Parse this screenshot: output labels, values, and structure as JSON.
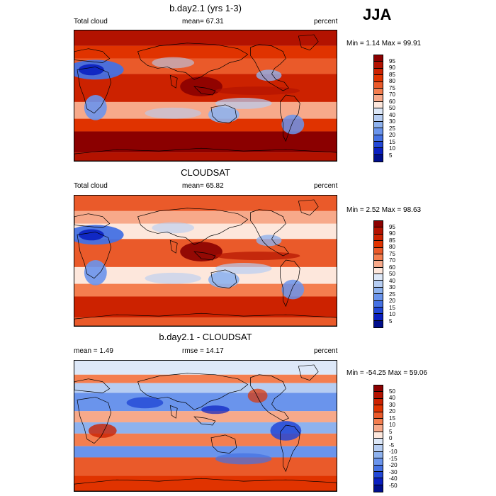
{
  "season_label": "JJA",
  "panels": [
    {
      "title": "b.day2.1 (yrs 1-3)",
      "left_label": "Total cloud",
      "center_label": "mean=  67.31",
      "right_label": "percent",
      "minmax": "Min =   1.14 Max =  99.91",
      "kind": "abs",
      "colorbar_labels": [
        "95",
        "90",
        "85",
        "80",
        "75",
        "70",
        "60",
        "50",
        "40",
        "30",
        "25",
        "20",
        "15",
        "10",
        "5"
      ]
    },
    {
      "title": "CLOUDSAT",
      "left_label": "Total cloud",
      "center_label": "mean=  65.82",
      "right_label": "percent",
      "minmax": "Min =   2.52 Max =  98.63",
      "kind": "abs2",
      "colorbar_labels": [
        "95",
        "90",
        "85",
        "80",
        "75",
        "70",
        "60",
        "50",
        "40",
        "30",
        "25",
        "20",
        "15",
        "10",
        "5"
      ]
    },
    {
      "title": "b.day2.1 - CLOUDSAT",
      "left_label": "mean =   1.49",
      "center_label": "rmse =  14.17",
      "right_label": "percent",
      "minmax": "Min = -54.25 Max =  59.06",
      "kind": "diff",
      "colorbar_labels": [
        "50",
        "40",
        "30",
        "20",
        "15",
        "10",
        "5",
        "0",
        "-5",
        "-10",
        "-15",
        "-20",
        "-30",
        "-40",
        "-50"
      ]
    }
  ],
  "colors": {
    "abs_scale": [
      "#8b0000",
      "#b31200",
      "#cc2200",
      "#e03300",
      "#ea5a2a",
      "#f47e4f",
      "#f7a98a",
      "#fde7dc",
      "#dde8f8",
      "#b6cdf2",
      "#8eb2ee",
      "#6a94ec",
      "#4571e3",
      "#2247d6",
      "#0a1fc0",
      "#000e8c"
    ],
    "diff_scale": [
      "#8b0000",
      "#b31200",
      "#cc2200",
      "#e03300",
      "#ea5a2a",
      "#f47e4f",
      "#f7a98a",
      "#fde7dc",
      "#dde8f8",
      "#b6cdf2",
      "#8eb2ee",
      "#6a94ec",
      "#4571e3",
      "#2247d6",
      "#0a1fc0",
      "#000e8c"
    ],
    "coastline": "#000000"
  }
}
